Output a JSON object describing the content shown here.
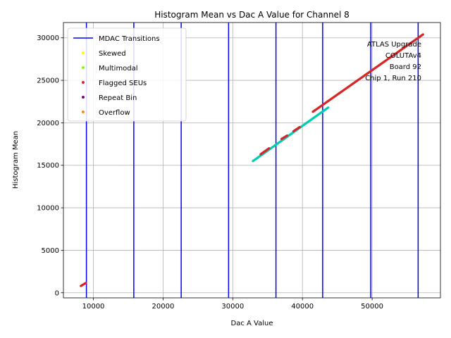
{
  "chart_data": {
    "type": "scatter",
    "title": "Histogram Mean vs Dac A Value for Channel 8",
    "xlabel": "Dac A Value",
    "ylabel": "Histogram Mean",
    "xlim": [
      5700,
      59800
    ],
    "ylim": [
      -600,
      31800
    ],
    "xticks": [
      10000,
      20000,
      30000,
      40000,
      50000
    ],
    "yticks": [
      0,
      5000,
      10000,
      15000,
      20000,
      25000,
      30000
    ],
    "grid": true,
    "legend_position": "top-left",
    "legend": [
      {
        "label": "MDAC Transitions",
        "kind": "line",
        "color": "#0000ff"
      },
      {
        "label": "Skewed",
        "kind": "marker",
        "color": "#ffff00"
      },
      {
        "label": "Multimodal",
        "kind": "marker",
        "color": "#7fff00"
      },
      {
        "label": "Flagged SEUs",
        "kind": "marker",
        "color": "#d62728"
      },
      {
        "label": "Repeat Bin",
        "kind": "marker",
        "color": "#800080"
      },
      {
        "label": "Overflow",
        "kind": "marker",
        "color": "#ff8c00"
      }
    ],
    "mdac_transitions": [
      9000,
      15800,
      22600,
      29400,
      36200,
      42900,
      49800,
      56600
    ],
    "series": [
      {
        "color": "#d62728",
        "segments": [
          {
            "x": [
              8200,
              8900
            ],
            "y": [
              800,
              1150
            ]
          },
          {
            "x": [
              41500,
              57300
            ],
            "y": [
              21300,
              30400
            ]
          }
        ]
      },
      {
        "color": "#00cdb5",
        "segments": [
          {
            "x": [
              32900,
              43700
            ],
            "y": [
              15500,
              21800
            ]
          }
        ]
      },
      {
        "color": "#d62728",
        "segments": [
          {
            "x": [
              34000,
              35200
            ],
            "y": [
              16300,
              17000
            ]
          },
          {
            "x": [
              37000,
              37800
            ],
            "y": [
              18100,
              18500
            ]
          },
          {
            "x": [
              38700,
              39600
            ],
            "y": [
              19000,
              19500
            ]
          }
        ]
      }
    ],
    "annotation_lines": [
      "ATLAS Upgrade",
      "COLUTAv4",
      "Board 92",
      "Chip 1, Run 210"
    ]
  }
}
